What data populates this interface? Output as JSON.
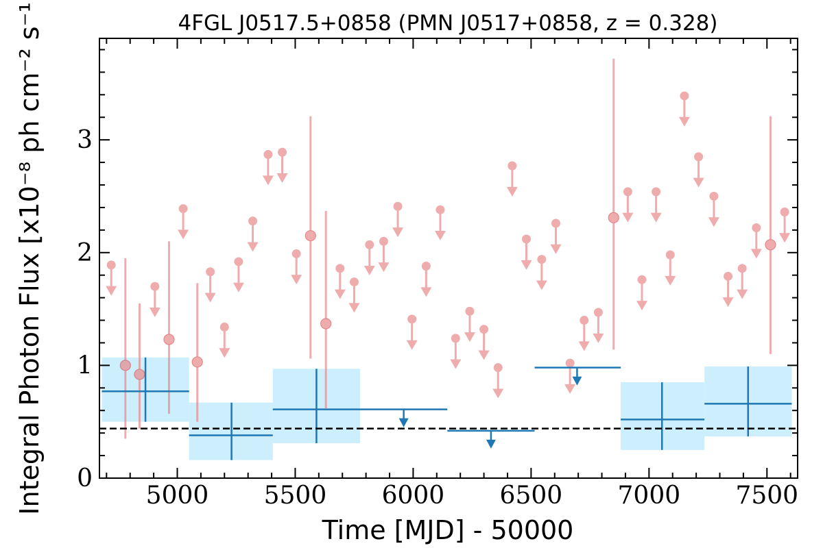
{
  "chart_data": {
    "type": "scatter",
    "title": "4FGL J0517.5+0858 (PMN J0517+0858, z = 0.328)",
    "xlabel": "Time [MJD] - 50000",
    "ylabel": "Integral Photon Flux [x10⁻⁸ ph cm⁻² s⁻¹]",
    "xlim": [
      4670,
      7630
    ],
    "ylim": [
      0,
      3.9
    ],
    "x_ticks": [
      5000,
      5500,
      6000,
      6500,
      7000,
      7500
    ],
    "y_ticks": [
      0,
      1,
      2,
      3
    ],
    "baseline": 0.44,
    "series": [
      {
        "style": "monthly",
        "color": "#e8898b",
        "upper_limits": [
          {
            "x": 4720,
            "y": 1.89
          },
          {
            "x": 4905,
            "y": 1.7
          },
          {
            "x": 5025,
            "y": 2.39
          },
          {
            "x": 5140,
            "y": 1.83
          },
          {
            "x": 5200,
            "y": 1.34
          },
          {
            "x": 5260,
            "y": 1.92
          },
          {
            "x": 5320,
            "y": 2.28
          },
          {
            "x": 5385,
            "y": 2.87
          },
          {
            "x": 5445,
            "y": 2.89
          },
          {
            "x": 5505,
            "y": 1.99
          },
          {
            "x": 5690,
            "y": 1.86
          },
          {
            "x": 5750,
            "y": 1.74
          },
          {
            "x": 5815,
            "y": 2.07
          },
          {
            "x": 5875,
            "y": 2.1
          },
          {
            "x": 5935,
            "y": 2.41
          },
          {
            "x": 5995,
            "y": 1.41
          },
          {
            "x": 6055,
            "y": 1.88
          },
          {
            "x": 6115,
            "y": 2.38
          },
          {
            "x": 6180,
            "y": 1.24
          },
          {
            "x": 6240,
            "y": 1.48
          },
          {
            "x": 6300,
            "y": 1.32
          },
          {
            "x": 6360,
            "y": 0.98
          },
          {
            "x": 6420,
            "y": 2.77
          },
          {
            "x": 6480,
            "y": 2.12
          },
          {
            "x": 6545,
            "y": 1.94
          },
          {
            "x": 6605,
            "y": 2.26
          },
          {
            "x": 6665,
            "y": 1.02
          },
          {
            "x": 6725,
            "y": 1.4
          },
          {
            "x": 6785,
            "y": 1.47
          },
          {
            "x": 6910,
            "y": 2.54
          },
          {
            "x": 6970,
            "y": 1.76
          },
          {
            "x": 7030,
            "y": 2.54
          },
          {
            "x": 7090,
            "y": 1.98
          },
          {
            "x": 7150,
            "y": 3.39
          },
          {
            "x": 7210,
            "y": 2.85
          },
          {
            "x": 7275,
            "y": 2.5
          },
          {
            "x": 7335,
            "y": 1.79
          },
          {
            "x": 7395,
            "y": 1.86
          },
          {
            "x": 7455,
            "y": 2.22
          },
          {
            "x": 7575,
            "y": 2.36
          }
        ],
        "detections": [
          {
            "x": 4780,
            "y": 1.0,
            "ylo": 0.35,
            "yhi": 1.95
          },
          {
            "x": 4840,
            "y": 0.92,
            "ylo": 0.44,
            "yhi": 1.55
          },
          {
            "x": 4965,
            "y": 1.23,
            "ylo": 0.57,
            "yhi": 2.1
          },
          {
            "x": 5085,
            "y": 1.03,
            "ylo": 0.5,
            "yhi": 1.73
          },
          {
            "x": 5565,
            "y": 2.15,
            "ylo": 1.06,
            "yhi": 3.21
          },
          {
            "x": 5630,
            "y": 1.37,
            "ylo": 0.62,
            "yhi": 2.37
          },
          {
            "x": 6850,
            "y": 2.31,
            "ylo": 1.14,
            "yhi": 3.72
          },
          {
            "x": 7515,
            "y": 2.07,
            "ylo": 1.1,
            "yhi": 3.21
          }
        ]
      },
      {
        "style": "yearly",
        "color": "#1f77b4",
        "band_color": "#cdeefd",
        "detections": [
          {
            "x": 4865,
            "xlo": 4680,
            "xhi": 5050,
            "y": 0.77,
            "ylo": 0.5,
            "yhi": 1.07
          },
          {
            "x": 5230,
            "xlo": 5050,
            "xhi": 5405,
            "y": 0.38,
            "ylo": 0.16,
            "yhi": 0.67
          },
          {
            "x": 5590,
            "xlo": 5405,
            "xhi": 5775,
            "y": 0.61,
            "ylo": 0.31,
            "yhi": 0.97
          },
          {
            "x": 7055,
            "xlo": 6880,
            "xhi": 7235,
            "y": 0.52,
            "ylo": 0.25,
            "yhi": 0.85
          },
          {
            "x": 7420,
            "xlo": 7235,
            "xhi": 7605,
            "y": 0.66,
            "ylo": 0.37,
            "yhi": 0.99
          }
        ],
        "upper_limits": [
          {
            "x": 5960,
            "xlo": 5775,
            "xhi": 6145,
            "y": 0.61
          },
          {
            "x": 6330,
            "xlo": 6145,
            "xhi": 6515,
            "y": 0.42
          },
          {
            "x": 6695,
            "xlo": 6515,
            "xhi": 6880,
            "y": 0.98
          }
        ]
      }
    ]
  }
}
